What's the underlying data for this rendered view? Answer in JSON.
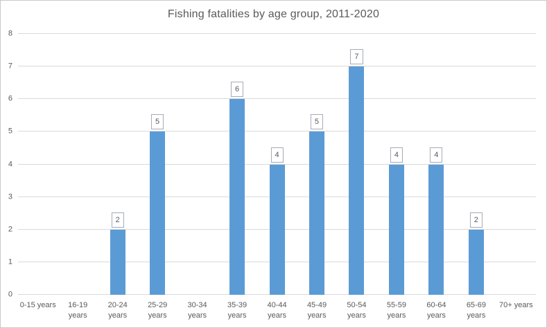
{
  "chart_data": {
    "type": "bar",
    "title": "Fishing fatalities by age group, 2011-2020",
    "categories": [
      "0-15 years",
      "16-19 years",
      "20-24 years",
      "25-29 years",
      "30-34 years",
      "35-39 years",
      "40-44 years",
      "45-49 years",
      "50-54 years",
      "55-59 years",
      "60-64 years",
      "65-69 years",
      "70+ years"
    ],
    "values": [
      0,
      0,
      2,
      5,
      0,
      6,
      4,
      5,
      7,
      4,
      4,
      2,
      0
    ],
    "xlabel": "",
    "ylabel": "",
    "ylim": [
      0,
      8
    ],
    "yticks": [
      0,
      1,
      2,
      3,
      4,
      5,
      6,
      7,
      8
    ],
    "grid": true,
    "legend": "none",
    "data_labels_shown_for_nonzero_bars": true,
    "tick_label_lines": [
      [
        "0-15 years"
      ],
      [
        "16-19",
        "years"
      ],
      [
        "20-24",
        "years"
      ],
      [
        "25-29",
        "years"
      ],
      [
        "30-34",
        "years"
      ],
      [
        "35-39",
        "years"
      ],
      [
        "40-44",
        "years"
      ],
      [
        "45-49",
        "years"
      ],
      [
        "50-54",
        "years"
      ],
      [
        "55-59",
        "years"
      ],
      [
        "60-64",
        "years"
      ],
      [
        "65-69",
        "years"
      ],
      [
        "70+ years"
      ]
    ],
    "colors": {
      "bar": "#5b9bd5",
      "gridline": "#d9d9d9",
      "axis_line": "#d9d9d9",
      "title_text": "#595959",
      "tick_text": "#595959",
      "label_box_border": "#a3aab4",
      "label_box_bg": "#ffffff",
      "label_text": "#595959",
      "frame_border": "#c9c9c9",
      "background": "#ffffff"
    }
  }
}
